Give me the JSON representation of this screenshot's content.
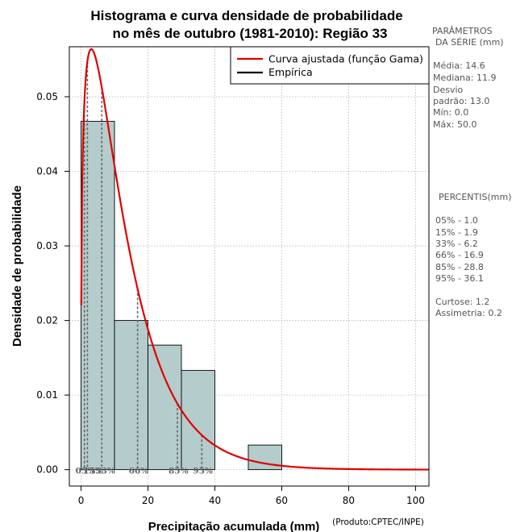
{
  "chart_data": {
    "type": "bar",
    "title_line1": "Histograma e curva densidade de probabilidade",
    "title_line2": "no mês de outubro (1981-2010): Região 33",
    "xlabel": "Precipitação acumulada (mm)",
    "ylabel": "Densidade de probabilidade",
    "credit": "(Produto:CPTEC/INPE)",
    "xlim": [
      -3.5,
      104
    ],
    "ylim": [
      -0.0022,
      0.0567
    ],
    "x_ticks": [
      0,
      20,
      40,
      60,
      80,
      100
    ],
    "x_tick_labels": [
      "0",
      "20",
      "40",
      "60",
      "80",
      "100"
    ],
    "y_ticks": [
      0.0,
      0.01,
      0.02,
      0.03,
      0.04,
      0.05
    ],
    "y_tick_labels": [
      "0.00",
      "0.01",
      "0.02",
      "0.03",
      "0.04",
      "0.05"
    ],
    "grid": true,
    "bins": [
      {
        "x0": 0,
        "x1": 10,
        "density": 0.0467
      },
      {
        "x0": 10,
        "x1": 20,
        "density": 0.02
      },
      {
        "x0": 20,
        "x1": 30,
        "density": 0.0167
      },
      {
        "x0": 30,
        "x1": 40,
        "density": 0.0133
      },
      {
        "x0": 50,
        "x1": 60,
        "density": 0.0033
      }
    ],
    "bar_color": "#b4cccc",
    "curve": {
      "name": "Curva ajustada (função Gama)",
      "color": "#e00000",
      "shape": 1.3,
      "scale": 10.2,
      "x_max": 104
    },
    "empirical": {
      "name": "Empírica",
      "color": "#000000"
    },
    "legend_position": "top-right",
    "percentile_lines": [
      {
        "label": "05%",
        "x": 1.0
      },
      {
        "label": "15%",
        "x": 1.9
      },
      {
        "label": "33%",
        "x": 6.2
      },
      {
        "label": "66%",
        "x": 16.9
      },
      {
        "label": "85%",
        "x": 28.8
      },
      {
        "label": "95%",
        "x": 36.1
      }
    ]
  },
  "side_panel": {
    "params_title_1": "PARÂMETROS",
    "params_title_2": "DA SÉRIE (mm)",
    "media": "Média:  14.6",
    "mediana": "Mediana:  11.9",
    "desvio_1": "Desvio",
    "desvio_2": "padrão:  13.0",
    "min": "Mín:  0.0",
    "max": "Máx:  50.0",
    "percentis_title": "PERCENTIS(mm)",
    "p05": "05% -   1.0",
    "p15": "15% -   1.9",
    "p33": "33% -   6.2",
    "p66": "66% -   16.9",
    "p85": "85% -   28.8",
    "p95": "95% -   36.1",
    "curtose": "Curtose:  1.2",
    "assimetria": "Assimetria:  0.2"
  }
}
